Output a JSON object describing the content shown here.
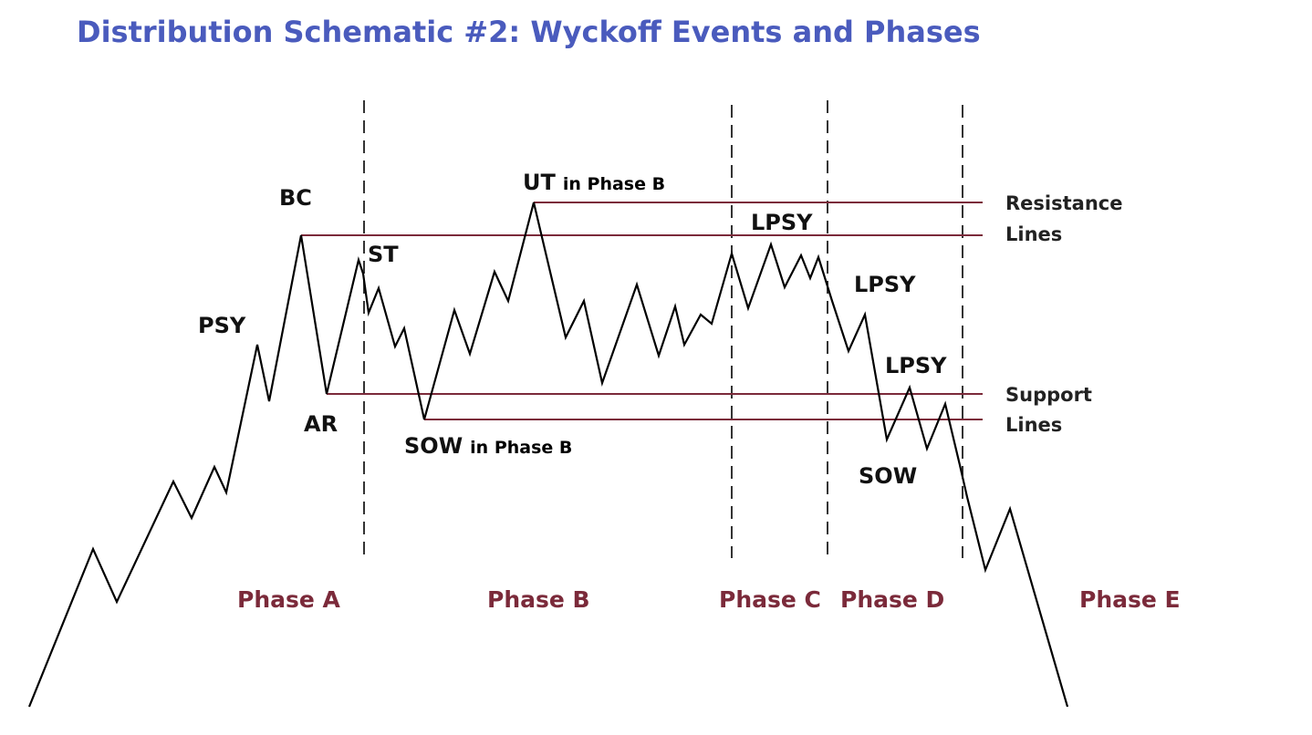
{
  "header": {
    "title": "Distribution Schematic #2: Wyckoff Events and Phases"
  },
  "events": {
    "psy": "PSY",
    "bc": "BC",
    "ar": "AR",
    "st": "ST",
    "ut": {
      "event": "UT",
      "note": "in Phase B"
    },
    "sow_b": {
      "event": "SOW",
      "note": "in Phase B"
    },
    "lpsy_1": "LPSY",
    "lpsy_2": "LPSY",
    "lpsy_3": "LPSY",
    "sow": "SOW"
  },
  "lines": {
    "resistance": [
      "Resistance",
      "Lines"
    ],
    "support": [
      "Support",
      "Lines"
    ]
  },
  "phases": [
    "Phase A",
    "Phase B",
    "Phase C",
    "Phase D",
    "Phase E"
  ]
}
